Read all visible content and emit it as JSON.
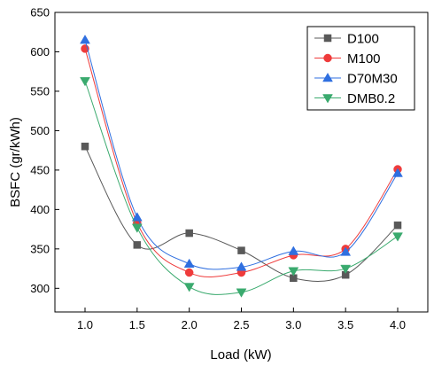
{
  "chart_data": {
    "type": "line",
    "title": "",
    "xlabel": "Load (kW)",
    "ylabel": "BSFC (gr/kWh)",
    "x": [
      1.0,
      1.5,
      2.0,
      2.5,
      3.0,
      3.5,
      4.0
    ],
    "x_tick_labels": [
      "1.0",
      "1.5",
      "2.0",
      "2.5",
      "3.0",
      "3.5",
      "4.0"
    ],
    "ylim": [
      270,
      650
    ],
    "y_ticks": [
      300,
      350,
      400,
      450,
      500,
      550,
      600,
      650
    ],
    "y_tick_labels": [
      "300",
      "350",
      "400",
      "450",
      "500",
      "550",
      "600",
      "650"
    ],
    "grid": false,
    "legend_position": "top-right",
    "smooth_lines": true,
    "series": [
      {
        "name": "D100",
        "color": "#595959",
        "marker": "square",
        "values": [
          480,
          355,
          370,
          348,
          313,
          317,
          380
        ]
      },
      {
        "name": "M100",
        "color": "#ef3b3b",
        "marker": "circle",
        "values": [
          604,
          383,
          320,
          320,
          342,
          350,
          451
        ]
      },
      {
        "name": "D70M30",
        "color": "#2f6fe0",
        "marker": "triangle-up",
        "values": [
          615,
          390,
          331,
          327,
          347,
          346,
          446
        ]
      },
      {
        "name": "DMB0.2",
        "color": "#3aaa6e",
        "marker": "triangle-down",
        "values": [
          563,
          377,
          302,
          295,
          322,
          325,
          366
        ]
      }
    ]
  }
}
